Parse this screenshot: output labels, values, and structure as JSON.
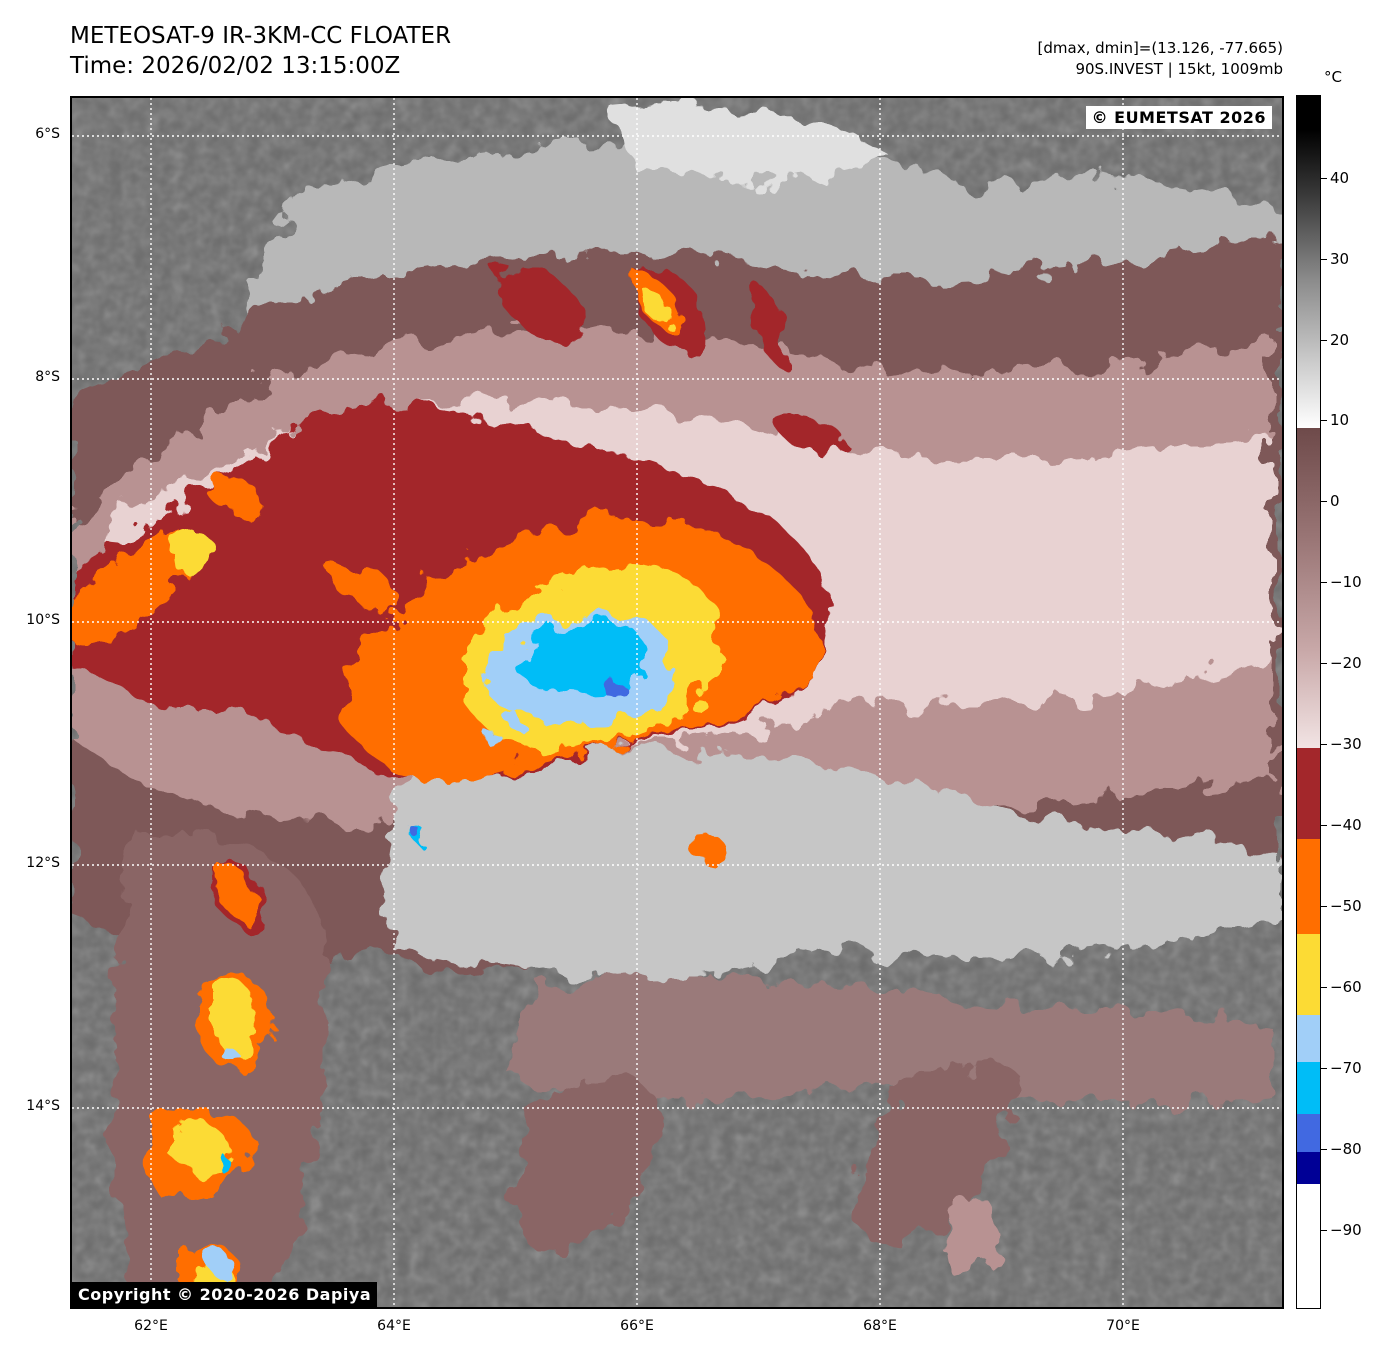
{
  "header": {
    "title_line1": "METEOSAT-9 IR-3KM-CC FLOATER",
    "title_line2": "Time: 2026/02/02 13:15:00Z",
    "info_line1": "[dmax, dmin]=(13.126, -77.665)",
    "info_line2": "90S.INVEST | 15kt, 1009mb"
  },
  "map": {
    "lat_labels": [
      "6°S",
      "8°S",
      "10°S",
      "12°S",
      "14°S"
    ],
    "lon_labels": [
      "62°E",
      "64°E",
      "66°E",
      "68°E",
      "70°E"
    ],
    "copyright_eumetsat": "© EUMETSAT 2026",
    "copyright_dapiya": "Copyright © 2020-2026 Dapiya"
  },
  "colorbar": {
    "unit": "°C",
    "tick_labels": [
      "40",
      "30",
      "20",
      "10",
      "0",
      "−10",
      "−20",
      "−30",
      "−40",
      "−50",
      "−60",
      "−70",
      "−80",
      "−90"
    ],
    "colors": {
      "brown_dark": "#a3272b",
      "orange": "#ff6e00",
      "yellow": "#fcdb34",
      "light_blue": "#a1cff8",
      "cyan": "#00bdf7",
      "royal_blue": "#4169e1",
      "navy": "#000096",
      "pink_light": "#ebd5d5",
      "pink_mid": "#b38e8e",
      "brown_mauve": "#7a5252"
    }
  }
}
